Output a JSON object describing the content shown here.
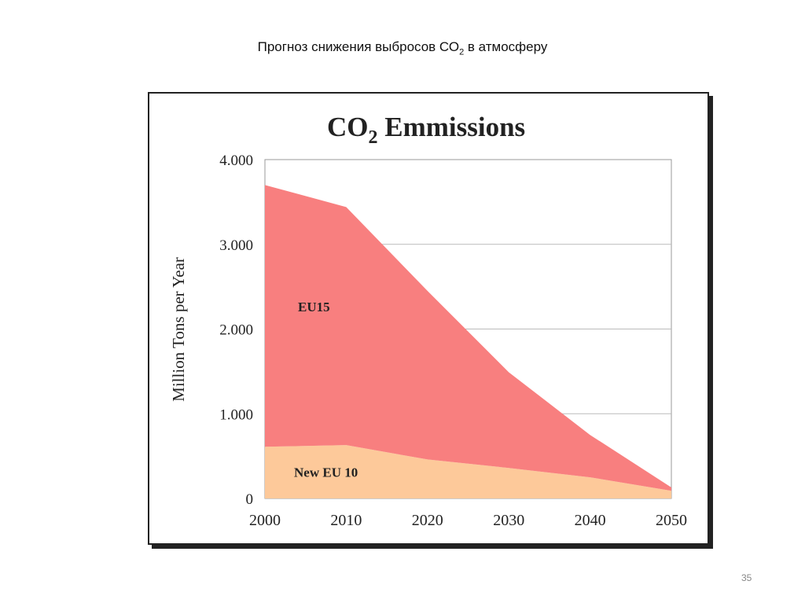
{
  "slide": {
    "title_main": "Прогноз снижения выбросов СО",
    "title_sub": "2",
    "title_rest": " в атмосферу",
    "page_number": "35"
  },
  "chart_data": {
    "type": "area",
    "stacked": true,
    "title_main": "CO",
    "title_sub": "2",
    "title_rest": " Emmissions",
    "ylabel": "Million Tons per Year",
    "xlabel": "",
    "x": [
      2000,
      2010,
      2020,
      2030,
      2040,
      2050
    ],
    "xlim": [
      2000,
      2050
    ],
    "ylim": [
      0,
      4000
    ],
    "yticks": [
      0,
      1000,
      2000,
      3000,
      4000
    ],
    "ytick_labels": [
      "0",
      "1.000",
      "2.000",
      "3.000",
      "4.000"
    ],
    "xtick_labels": [
      "2000",
      "2010",
      "2020",
      "2030",
      "2040",
      "2050"
    ],
    "grid": "horizontal",
    "series": [
      {
        "name": "New EU 10",
        "values": [
          610,
          630,
          460,
          360,
          250,
          90
        ],
        "color": "#fdc99a"
      },
      {
        "name": "EU15",
        "values": [
          3090,
          2810,
          1990,
          1130,
          500,
          40
        ],
        "color": "#f87f7f"
      }
    ]
  }
}
